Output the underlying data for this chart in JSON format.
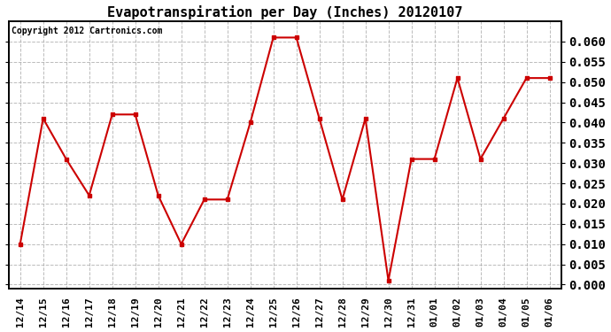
{
  "title": "Evapotranspiration per Day (Inches) 20120107",
  "copyright_text": "Copyright 2012 Cartronics.com",
  "x_labels": [
    "12/14",
    "12/15",
    "12/16",
    "12/17",
    "12/18",
    "12/19",
    "12/20",
    "12/21",
    "12/22",
    "12/23",
    "12/24",
    "12/25",
    "12/26",
    "12/27",
    "12/28",
    "12/29",
    "12/30",
    "12/31",
    "01/01",
    "01/02",
    "01/03",
    "01/04",
    "01/05",
    "01/06"
  ],
  "y_values": [
    0.01,
    0.041,
    0.031,
    0.022,
    0.042,
    0.042,
    0.022,
    0.01,
    0.021,
    0.021,
    0.04,
    0.061,
    0.061,
    0.041,
    0.021,
    0.041,
    0.001,
    0.031,
    0.031,
    0.051,
    0.031,
    0.041,
    0.051,
    0.051
  ],
  "line_color": "#cc0000",
  "marker": "s",
  "marker_size": 3,
  "ylim": [
    -0.001,
    0.065
  ],
  "ytick_min": 0.0,
  "ytick_max": 0.06,
  "ytick_step": 0.005,
  "plot_bg_color": "#ffffff",
  "fig_bg_color": "#ffffff",
  "grid_color": "#aaaaaa",
  "title_fontsize": 11,
  "copyright_fontsize": 7,
  "tick_fontsize": 8,
  "ytick_fontsize": 10,
  "figure_width": 6.9,
  "figure_height": 3.75,
  "dpi": 100
}
